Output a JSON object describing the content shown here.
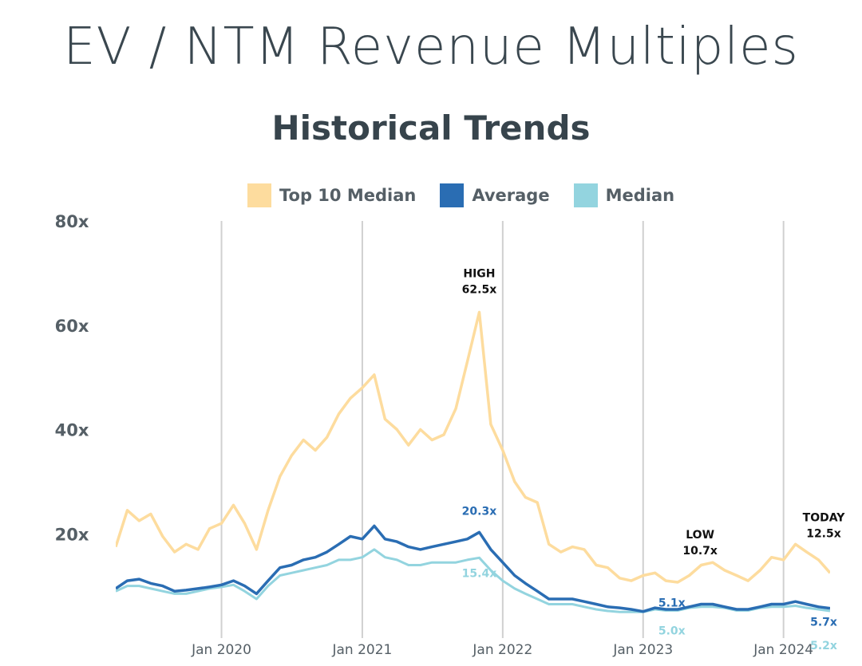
{
  "title": "EV / NTM Revenue Multiples",
  "subtitle": "Historical Trends",
  "colors": {
    "top10": "#fddc9e",
    "average": "#2a6db3",
    "median": "#93d4df",
    "grid": "#d0d0d0",
    "text": "#555f66"
  },
  "legend": [
    {
      "name": "Top 10 Median",
      "color": "#fddc9e"
    },
    {
      "name": "Average",
      "color": "#2a6db3"
    },
    {
      "name": "Median",
      "color": "#93d4df"
    }
  ],
  "chart_data": {
    "type": "line",
    "title": "EV / NTM Revenue Multiples",
    "subtitle": "Historical Trends",
    "xlabel": "",
    "ylabel": "",
    "xlim": [
      "2019-04-01",
      "2024-05-01"
    ],
    "ylim": [
      0,
      80
    ],
    "y_ticks": [
      {
        "value": 20,
        "label": "20x"
      },
      {
        "value": 40,
        "label": "40x"
      },
      {
        "value": 60,
        "label": "60x"
      },
      {
        "value": 80,
        "label": "80x"
      }
    ],
    "x_ticks": [
      {
        "value": "2020-01-01",
        "label": "Jan 2020"
      },
      {
        "value": "2021-01-01",
        "label": "Jan 2021"
      },
      {
        "value": "2022-01-01",
        "label": "Jan 2022"
      },
      {
        "value": "2023-01-01",
        "label": "Jan 2023"
      },
      {
        "value": "2024-01-01",
        "label": "Jan 2024"
      }
    ],
    "grid": "vertical",
    "legend_position": "top",
    "series": [
      {
        "name": "Top 10 Median",
        "color": "#fddc9e",
        "points": [
          [
            "2019-04-01",
            17.5
          ],
          [
            "2019-05-01",
            24.5
          ],
          [
            "2019-06-01",
            22.5
          ],
          [
            "2019-07-01",
            23.8
          ],
          [
            "2019-08-01",
            19.5
          ],
          [
            "2019-09-01",
            16.5
          ],
          [
            "2019-10-01",
            18.0
          ],
          [
            "2019-11-01",
            17.0
          ],
          [
            "2019-12-01",
            21.0
          ],
          [
            "2020-01-01",
            22.0
          ],
          [
            "2020-02-01",
            25.5
          ],
          [
            "2020-03-01",
            22.0
          ],
          [
            "2020-04-01",
            17.0
          ],
          [
            "2020-05-01",
            24.5
          ],
          [
            "2020-06-01",
            31.0
          ],
          [
            "2020-07-01",
            35.0
          ],
          [
            "2020-08-01",
            38.0
          ],
          [
            "2020-09-01",
            36.0
          ],
          [
            "2020-10-01",
            38.5
          ],
          [
            "2020-11-01",
            43.0
          ],
          [
            "2020-12-01",
            46.0
          ],
          [
            "2021-01-01",
            48.0
          ],
          [
            "2021-02-01",
            50.5
          ],
          [
            "2021-03-01",
            42.0
          ],
          [
            "2021-04-01",
            40.0
          ],
          [
            "2021-05-01",
            37.0
          ],
          [
            "2021-06-01",
            40.0
          ],
          [
            "2021-07-01",
            38.0
          ],
          [
            "2021-08-01",
            39.0
          ],
          [
            "2021-09-01",
            44.0
          ],
          [
            "2021-10-01",
            53.0
          ],
          [
            "2021-11-01",
            62.5
          ],
          [
            "2021-12-01",
            41.0
          ],
          [
            "2022-01-01",
            36.0
          ],
          [
            "2022-02-01",
            30.0
          ],
          [
            "2022-03-01",
            27.0
          ],
          [
            "2022-04-01",
            26.0
          ],
          [
            "2022-05-01",
            18.0
          ],
          [
            "2022-06-01",
            16.5
          ],
          [
            "2022-07-01",
            17.5
          ],
          [
            "2022-08-01",
            17.0
          ],
          [
            "2022-09-01",
            14.0
          ],
          [
            "2022-10-01",
            13.5
          ],
          [
            "2022-11-01",
            11.5
          ],
          [
            "2022-12-01",
            11.0
          ],
          [
            "2023-01-01",
            12.0
          ],
          [
            "2023-02-01",
            12.5
          ],
          [
            "2023-03-01",
            11.0
          ],
          [
            "2023-04-01",
            10.7
          ],
          [
            "2023-05-01",
            12.0
          ],
          [
            "2023-06-01",
            14.0
          ],
          [
            "2023-07-01",
            14.5
          ],
          [
            "2023-08-01",
            13.0
          ],
          [
            "2023-09-01",
            12.0
          ],
          [
            "2023-10-01",
            11.0
          ],
          [
            "2023-11-01",
            13.0
          ],
          [
            "2023-12-01",
            15.5
          ],
          [
            "2024-01-01",
            15.0
          ],
          [
            "2024-02-01",
            18.0
          ],
          [
            "2024-03-01",
            16.5
          ],
          [
            "2024-04-01",
            15.0
          ],
          [
            "2024-05-01",
            12.5
          ]
        ]
      },
      {
        "name": "Average",
        "color": "#2a6db3",
        "points": [
          [
            "2019-04-01",
            9.5
          ],
          [
            "2019-05-01",
            11.0
          ],
          [
            "2019-06-01",
            11.3
          ],
          [
            "2019-07-01",
            10.5
          ],
          [
            "2019-08-01",
            10.0
          ],
          [
            "2019-09-01",
            9.0
          ],
          [
            "2019-10-01",
            9.2
          ],
          [
            "2019-11-01",
            9.5
          ],
          [
            "2019-12-01",
            9.8
          ],
          [
            "2020-01-01",
            10.2
          ],
          [
            "2020-02-01",
            11.0
          ],
          [
            "2020-03-01",
            10.0
          ],
          [
            "2020-04-01",
            8.5
          ],
          [
            "2020-05-01",
            11.0
          ],
          [
            "2020-06-01",
            13.5
          ],
          [
            "2020-07-01",
            14.0
          ],
          [
            "2020-08-01",
            15.0
          ],
          [
            "2020-09-01",
            15.5
          ],
          [
            "2020-10-01",
            16.5
          ],
          [
            "2020-11-01",
            18.0
          ],
          [
            "2020-12-01",
            19.5
          ],
          [
            "2021-01-01",
            19.0
          ],
          [
            "2021-02-01",
            21.5
          ],
          [
            "2021-03-01",
            19.0
          ],
          [
            "2021-04-01",
            18.5
          ],
          [
            "2021-05-01",
            17.5
          ],
          [
            "2021-06-01",
            17.0
          ],
          [
            "2021-07-01",
            17.5
          ],
          [
            "2021-08-01",
            18.0
          ],
          [
            "2021-09-01",
            18.5
          ],
          [
            "2021-10-01",
            19.0
          ],
          [
            "2021-11-01",
            20.3
          ],
          [
            "2021-12-01",
            17.0
          ],
          [
            "2022-01-01",
            14.5
          ],
          [
            "2022-02-01",
            12.0
          ],
          [
            "2022-03-01",
            10.5
          ],
          [
            "2022-04-01",
            9.0
          ],
          [
            "2022-05-01",
            7.5
          ],
          [
            "2022-06-01",
            7.5
          ],
          [
            "2022-07-01",
            7.5
          ],
          [
            "2022-08-01",
            7.0
          ],
          [
            "2022-09-01",
            6.5
          ],
          [
            "2022-10-01",
            6.0
          ],
          [
            "2022-11-01",
            5.8
          ],
          [
            "2022-12-01",
            5.5
          ],
          [
            "2023-01-01",
            5.1
          ],
          [
            "2023-02-01",
            5.8
          ],
          [
            "2023-03-01",
            5.5
          ],
          [
            "2023-04-01",
            5.5
          ],
          [
            "2023-05-01",
            6.0
          ],
          [
            "2023-06-01",
            6.5
          ],
          [
            "2023-07-01",
            6.5
          ],
          [
            "2023-08-01",
            6.0
          ],
          [
            "2023-09-01",
            5.5
          ],
          [
            "2023-10-01",
            5.5
          ],
          [
            "2023-11-01",
            6.0
          ],
          [
            "2023-12-01",
            6.5
          ],
          [
            "2024-01-01",
            6.5
          ],
          [
            "2024-02-01",
            7.0
          ],
          [
            "2024-03-01",
            6.5
          ],
          [
            "2024-04-01",
            6.0
          ],
          [
            "2024-05-01",
            5.7
          ]
        ]
      },
      {
        "name": "Median",
        "color": "#93d4df",
        "points": [
          [
            "2019-04-01",
            9.0
          ],
          [
            "2019-05-01",
            10.0
          ],
          [
            "2019-06-01",
            10.0
          ],
          [
            "2019-07-01",
            9.5
          ],
          [
            "2019-08-01",
            9.0
          ],
          [
            "2019-09-01",
            8.5
          ],
          [
            "2019-10-01",
            8.5
          ],
          [
            "2019-11-01",
            9.0
          ],
          [
            "2019-12-01",
            9.5
          ],
          [
            "2020-01-01",
            9.8
          ],
          [
            "2020-02-01",
            10.2
          ],
          [
            "2020-03-01",
            9.0
          ],
          [
            "2020-04-01",
            7.5
          ],
          [
            "2020-05-01",
            10.0
          ],
          [
            "2020-06-01",
            12.0
          ],
          [
            "2020-07-01",
            12.5
          ],
          [
            "2020-08-01",
            13.0
          ],
          [
            "2020-09-01",
            13.5
          ],
          [
            "2020-10-01",
            14.0
          ],
          [
            "2020-11-01",
            15.0
          ],
          [
            "2020-12-01",
            15.0
          ],
          [
            "2021-01-01",
            15.5
          ],
          [
            "2021-02-01",
            17.0
          ],
          [
            "2021-03-01",
            15.5
          ],
          [
            "2021-04-01",
            15.0
          ],
          [
            "2021-05-01",
            14.0
          ],
          [
            "2021-06-01",
            14.0
          ],
          [
            "2021-07-01",
            14.5
          ],
          [
            "2021-08-01",
            14.5
          ],
          [
            "2021-09-01",
            14.5
          ],
          [
            "2021-10-01",
            15.0
          ],
          [
            "2021-11-01",
            15.4
          ],
          [
            "2021-12-01",
            13.0
          ],
          [
            "2022-01-01",
            11.0
          ],
          [
            "2022-02-01",
            9.5
          ],
          [
            "2022-03-01",
            8.5
          ],
          [
            "2022-04-01",
            7.5
          ],
          [
            "2022-05-01",
            6.5
          ],
          [
            "2022-06-01",
            6.5
          ],
          [
            "2022-07-01",
            6.5
          ],
          [
            "2022-08-01",
            6.0
          ],
          [
            "2022-09-01",
            5.5
          ],
          [
            "2022-10-01",
            5.2
          ],
          [
            "2022-11-01",
            5.0
          ],
          [
            "2022-12-01",
            5.0
          ],
          [
            "2023-01-01",
            5.0
          ],
          [
            "2023-02-01",
            5.5
          ],
          [
            "2023-03-01",
            5.3
          ],
          [
            "2023-04-01",
            5.3
          ],
          [
            "2023-05-01",
            5.8
          ],
          [
            "2023-06-01",
            6.0
          ],
          [
            "2023-07-01",
            6.0
          ],
          [
            "2023-08-01",
            5.8
          ],
          [
            "2023-09-01",
            5.3
          ],
          [
            "2023-10-01",
            5.3
          ],
          [
            "2023-11-01",
            5.8
          ],
          [
            "2023-12-01",
            6.0
          ],
          [
            "2024-01-01",
            6.0
          ],
          [
            "2024-02-01",
            6.2
          ],
          [
            "2024-03-01",
            5.8
          ],
          [
            "2024-04-01",
            5.5
          ],
          [
            "2024-05-01",
            5.2
          ]
        ]
      }
    ],
    "annotations": [
      {
        "lines": [
          "HIGH",
          "62.5x"
        ],
        "x": "2021-11-01",
        "y": 62.5,
        "series": "Top 10 Median",
        "color": "#111111"
      },
      {
        "lines": [
          "20.3x"
        ],
        "x": "2021-11-01",
        "y": 20.3,
        "series": "Average",
        "color": "#2a6db3"
      },
      {
        "lines": [
          "15.4x"
        ],
        "x": "2021-11-01",
        "y": 15.4,
        "series": "Median",
        "color": "#93d4df"
      },
      {
        "lines": [
          "LOW",
          "10.7x"
        ],
        "x": "2023-04-01",
        "y": 10.7,
        "series": "Top 10 Median",
        "color": "#111111"
      },
      {
        "lines": [
          "5.1x"
        ],
        "x": "2023-01-01",
        "y": 5.1,
        "series": "Average",
        "color": "#2a6db3"
      },
      {
        "lines": [
          "5.0x"
        ],
        "x": "2023-01-01",
        "y": 5.0,
        "series": "Median",
        "color": "#93d4df"
      },
      {
        "lines": [
          "TODAY",
          "12.5x"
        ],
        "x": "2024-05-01",
        "y": 12.5,
        "series": "Top 10 Median",
        "color": "#111111"
      },
      {
        "lines": [
          "5.7x"
        ],
        "x": "2024-05-01",
        "y": 5.7,
        "series": "Average",
        "color": "#2a6db3"
      },
      {
        "lines": [
          "5.2x"
        ],
        "x": "2024-05-01",
        "y": 5.2,
        "series": "Median",
        "color": "#93d4df"
      }
    ]
  }
}
